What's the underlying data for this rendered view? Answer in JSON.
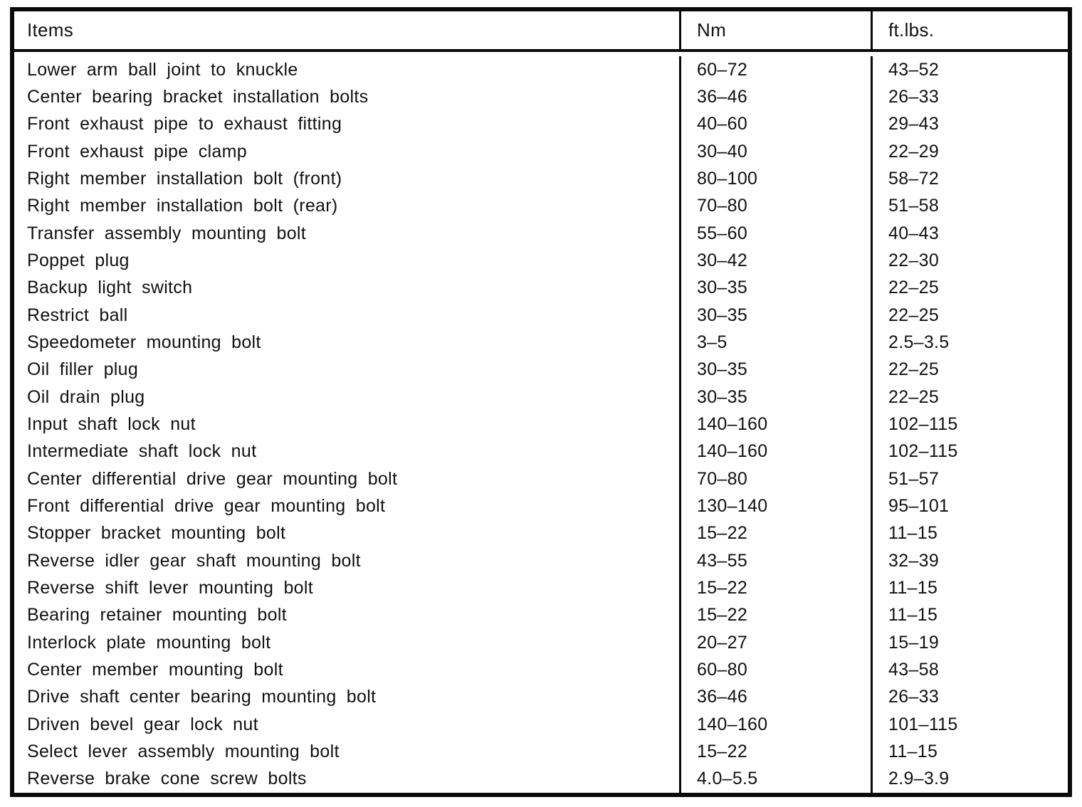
{
  "table": {
    "columns": [
      "Items",
      "Nm",
      "ft.lbs."
    ],
    "rows": [
      {
        "item": "Lower arm ball joint to knuckle",
        "nm": "60–72",
        "ftlbs": "43–52"
      },
      {
        "item": "Center bearing bracket installation bolts",
        "nm": "36–46",
        "ftlbs": "26–33"
      },
      {
        "item": "Front exhaust pipe to exhaust fitting",
        "nm": "40–60",
        "ftlbs": "29–43"
      },
      {
        "item": "Front exhaust pipe clamp",
        "nm": "30–40",
        "ftlbs": "22–29"
      },
      {
        "item": "Right member installation bolt (front)",
        "nm": "80–100",
        "ftlbs": "58–72"
      },
      {
        "item": "Right member installation bolt (rear)",
        "nm": "70–80",
        "ftlbs": "51–58"
      },
      {
        "item": "Transfer assembly mounting bolt",
        "nm": "55–60",
        "ftlbs": "40–43"
      },
      {
        "item": "Poppet plug",
        "nm": "30–42",
        "ftlbs": "22–30"
      },
      {
        "item": "Backup light switch",
        "nm": "30–35",
        "ftlbs": "22–25"
      },
      {
        "item": "Restrict ball",
        "nm": "30–35",
        "ftlbs": "22–25"
      },
      {
        "item": "Speedometer mounting bolt",
        "nm": "3–5",
        "ftlbs": "2.5–3.5"
      },
      {
        "item": "Oil filler plug",
        "nm": "30–35",
        "ftlbs": "22–25"
      },
      {
        "item": "Oil drain plug",
        "nm": "30–35",
        "ftlbs": "22–25"
      },
      {
        "item": "Input shaft lock nut",
        "nm": "140–160",
        "ftlbs": "102–115"
      },
      {
        "item": "Intermediate shaft lock nut",
        "nm": "140–160",
        "ftlbs": "102–115"
      },
      {
        "item": "Center differential drive gear mounting bolt",
        "nm": "70–80",
        "ftlbs": "51–57"
      },
      {
        "item": "Front differential drive gear mounting bolt",
        "nm": "130–140",
        "ftlbs": "95–101"
      },
      {
        "item": "Stopper bracket mounting bolt",
        "nm": "15–22",
        "ftlbs": "11–15"
      },
      {
        "item": "Reverse idler gear shaft mounting bolt",
        "nm": "43–55",
        "ftlbs": "32–39"
      },
      {
        "item": "Reverse shift lever mounting bolt",
        "nm": "15–22",
        "ftlbs": "11–15"
      },
      {
        "item": "Bearing retainer mounting bolt",
        "nm": "15–22",
        "ftlbs": "11–15"
      },
      {
        "item": "Interlock plate mounting bolt",
        "nm": "20–27",
        "ftlbs": "15–19"
      },
      {
        "item": "Center member mounting bolt",
        "nm": "60–80",
        "ftlbs": "43–58"
      },
      {
        "item": "Drive shaft center bearing mounting bolt",
        "nm": "36–46",
        "ftlbs": "26–33"
      },
      {
        "item": "Driven bevel gear lock nut",
        "nm": "140–160",
        "ftlbs": "101–115"
      },
      {
        "item": "Select lever assembly mounting bolt",
        "nm": "15–22",
        "ftlbs": "11–15"
      },
      {
        "item": "Reverse brake cone screw bolts",
        "nm": "4.0–5.5",
        "ftlbs": "2.9–3.9"
      }
    ]
  },
  "colors": {
    "border": "#0a0a0a",
    "background": "#ffffff",
    "text": "#111111"
  }
}
